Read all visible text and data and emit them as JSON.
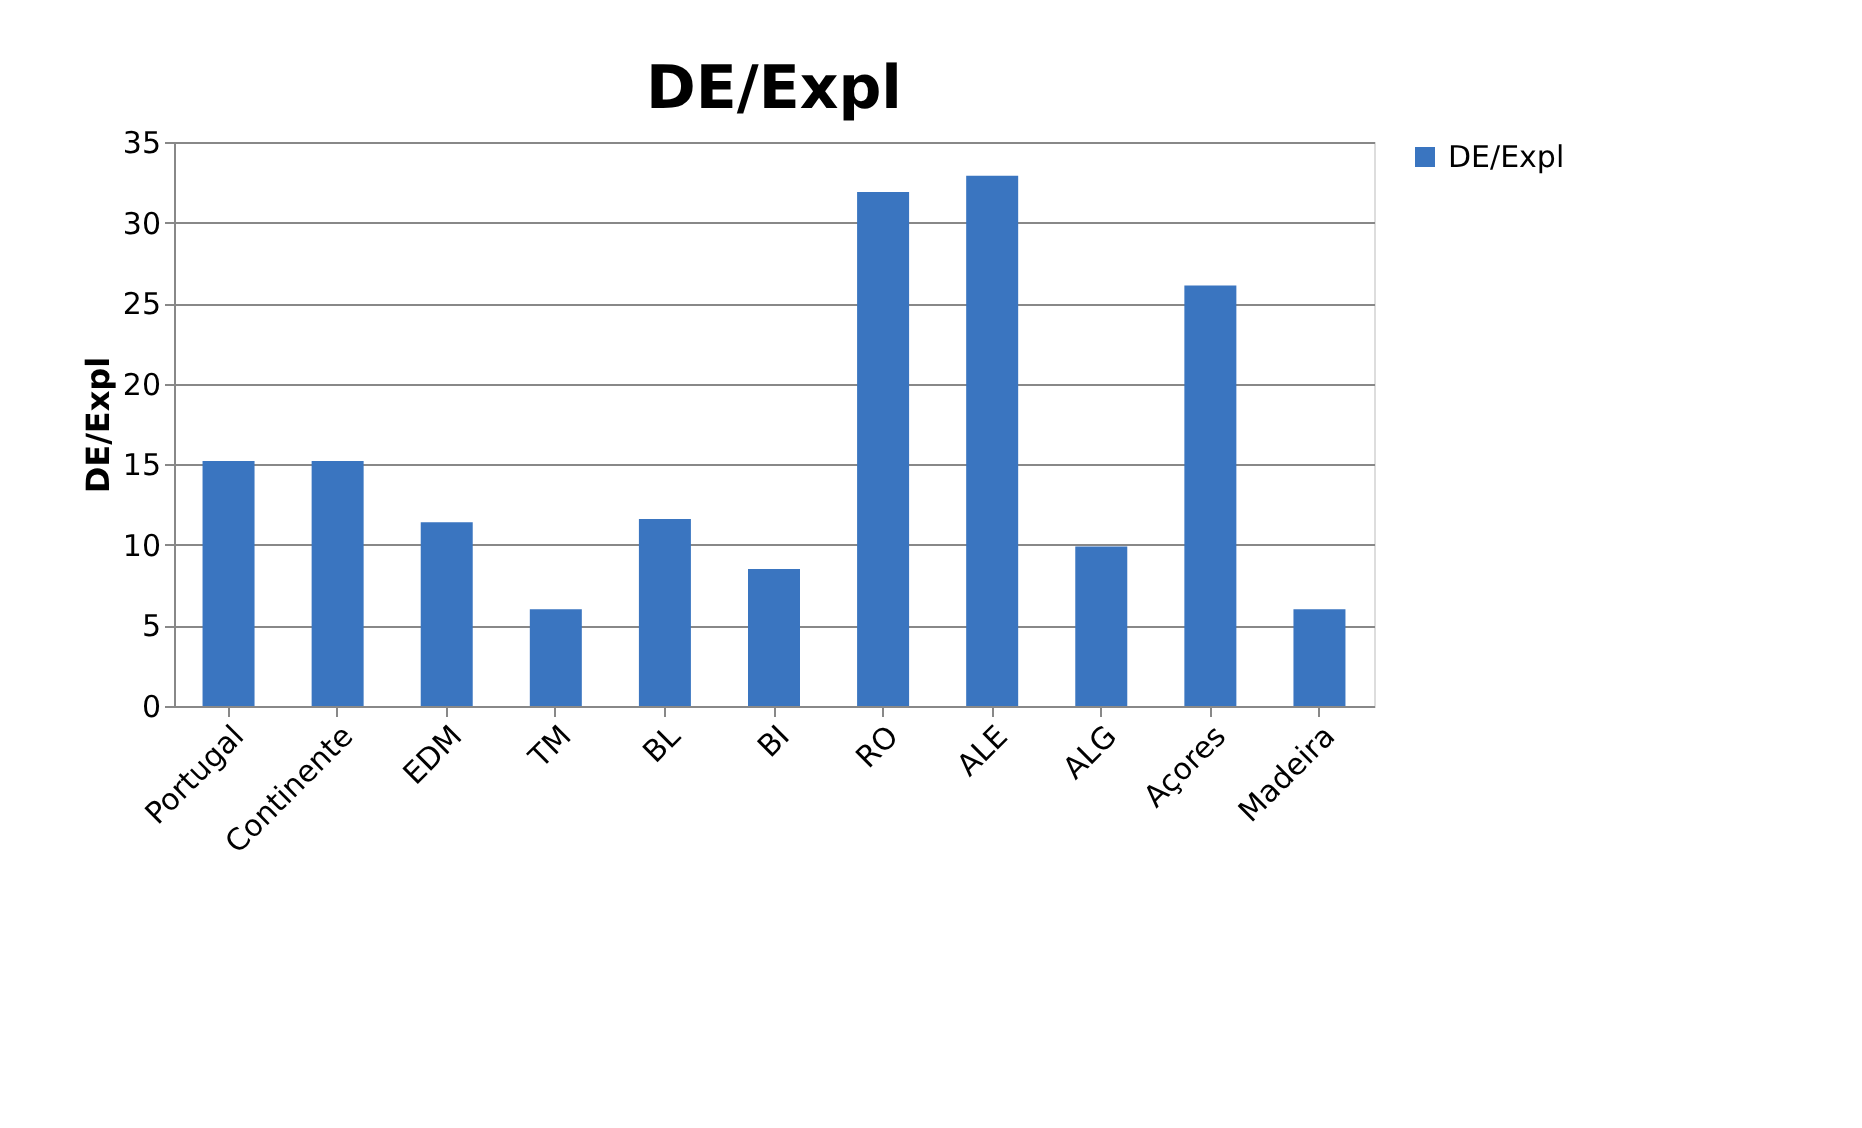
{
  "chart_data": {
    "type": "bar",
    "title": "DE/Expl",
    "ylabel": "DE/Expl",
    "categories": [
      "Portugal",
      "Continente",
      "EDM",
      "TM",
      "BL",
      "BI",
      "RO",
      "ALE",
      "ALG",
      "Açores",
      "Madeira"
    ],
    "series": [
      {
        "name": "DE/Expl",
        "color": "#3a75c0",
        "values": [
          15.2,
          15.2,
          11.4,
          6.0,
          11.6,
          8.5,
          31.9,
          32.9,
          9.9,
          26.1,
          6.0
        ]
      }
    ],
    "ylim": [
      0,
      35
    ],
    "yticks": [
      0,
      5,
      10,
      15,
      20,
      25,
      30,
      35
    ],
    "grid": "y",
    "legend": "right"
  }
}
